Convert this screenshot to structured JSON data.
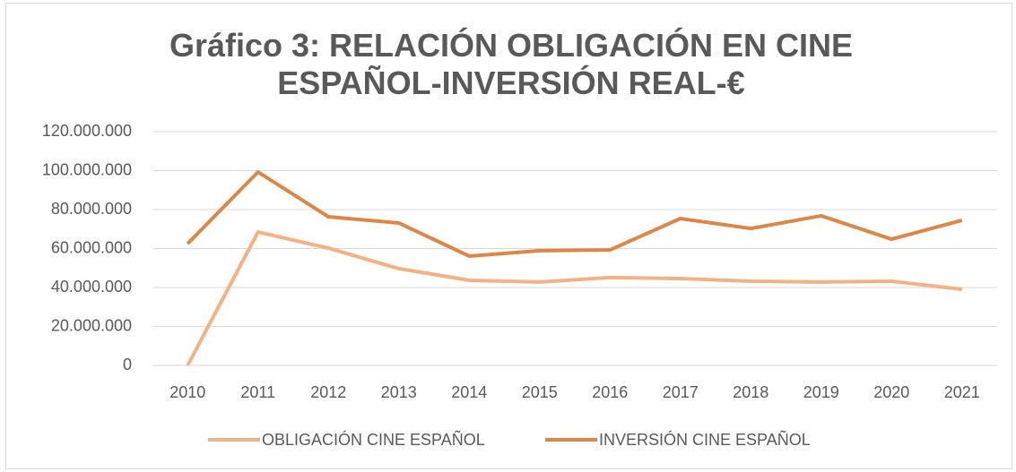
{
  "chart_data": {
    "type": "line",
    "title": "Gráfico 3: RELACIÓN OBLIGACIÓN EN CINE ESPAÑOL-INVERSIÓN REAL-€",
    "categories": [
      "2010",
      "2011",
      "2012",
      "2013",
      "2014",
      "2015",
      "2016",
      "2017",
      "2018",
      "2019",
      "2020",
      "2021"
    ],
    "series": [
      {
        "name": "OBLIGACIÓN CINE ESPAÑOL",
        "color": "#f4b183",
        "values": [
          0,
          68500000,
          60200000,
          49700000,
          43700000,
          42800000,
          45100000,
          44600000,
          43200000,
          42800000,
          43200000,
          39100000
        ]
      },
      {
        "name": "INVERSIÓN CINE ESPAÑOL",
        "color": "#dc8746",
        "values": [
          62500000,
          99300000,
          76300000,
          73100000,
          56100000,
          58900000,
          59300000,
          75400000,
          70300000,
          76800000,
          64800000,
          74500000
        ]
      }
    ],
    "ylim": [
      0,
      120000000
    ],
    "yticks": [
      0,
      {
        "value": 20000000,
        "label": "20.000.000"
      },
      {
        "value": 40000000,
        "label": "40.000.000"
      },
      {
        "value": 60000000,
        "label": "60.000.000"
      },
      {
        "value": 80000000,
        "label": "80.000.000"
      },
      {
        "value": 100000000,
        "label": "100.000.000"
      },
      {
        "value": 120000000,
        "label": "120.000.000"
      }
    ],
    "grid": true,
    "legend": "bottom"
  }
}
